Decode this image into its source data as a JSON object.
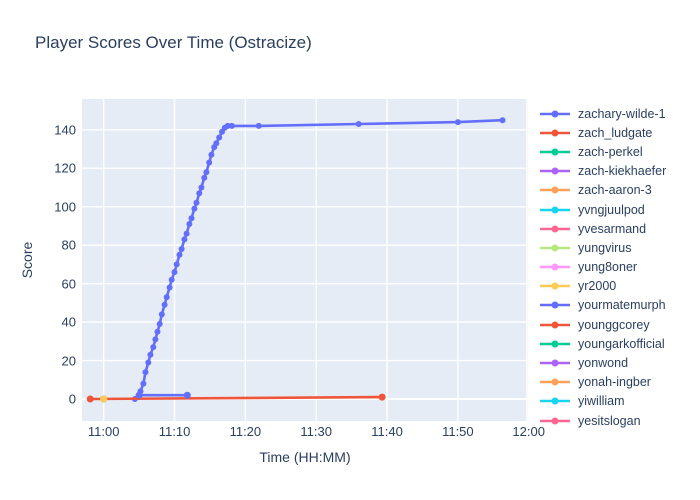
{
  "chart_data": {
    "type": "line",
    "title": "Player Scores Over Time (Ostracize)",
    "xlabel": "Time (HH:MM)",
    "ylabel": "Score",
    "x_unit": "minutes after 11:00",
    "x_ticks": [
      {
        "minutes": 0,
        "label": "11:00"
      },
      {
        "minutes": 10,
        "label": "11:10"
      },
      {
        "minutes": 20,
        "label": "11:20"
      },
      {
        "minutes": 30,
        "label": "11:30"
      },
      {
        "minutes": 40,
        "label": "11:40"
      },
      {
        "minutes": 50,
        "label": "11:50"
      },
      {
        "minutes": 60,
        "label": "12:00"
      }
    ],
    "y_ticks": [
      0,
      20,
      40,
      60,
      80,
      100,
      120,
      140
    ],
    "x_range_minutes": [
      -3.1,
      59.9
    ],
    "y_range": [
      -11.5,
      156
    ],
    "grid": true,
    "legend_position": "right",
    "plot_bg_color": "#E5ECF6",
    "grid_color": "#ffffff",
    "font_color": "#2a3f5f",
    "series": [
      {
        "name": "zachary-wilde-1",
        "color": "#636EFA",
        "points": [
          [
            4.4,
            0
          ],
          [
            4.9,
            1
          ],
          [
            5.2,
            4
          ],
          [
            5.6,
            8
          ],
          [
            5.9,
            14
          ],
          [
            6.3,
            19
          ],
          [
            6.6,
            23
          ],
          [
            7.0,
            27
          ],
          [
            7.3,
            31
          ],
          [
            7.6,
            35
          ],
          [
            7.9,
            39
          ],
          [
            8.2,
            44
          ],
          [
            8.6,
            49
          ],
          [
            8.9,
            53
          ],
          [
            9.3,
            58
          ],
          [
            9.6,
            62
          ],
          [
            10.0,
            66
          ],
          [
            10.3,
            70
          ],
          [
            10.7,
            75
          ],
          [
            11.0,
            78
          ],
          [
            11.4,
            83
          ],
          [
            11.7,
            86
          ],
          [
            12.1,
            91
          ],
          [
            12.4,
            94
          ],
          [
            12.8,
            99
          ],
          [
            13.1,
            102
          ],
          [
            13.5,
            107
          ],
          [
            13.8,
            110
          ],
          [
            14.2,
            115
          ],
          [
            14.5,
            118
          ],
          [
            14.9,
            123
          ],
          [
            15.2,
            127
          ],
          [
            15.6,
            131
          ],
          [
            15.9,
            133
          ],
          [
            16.3,
            136
          ],
          [
            16.7,
            139
          ],
          [
            17.1,
            141
          ],
          [
            17.5,
            142
          ],
          [
            18.1,
            142
          ],
          [
            21.9,
            142
          ],
          [
            36,
            143
          ],
          [
            50,
            144
          ],
          [
            56.3,
            145
          ]
        ]
      },
      {
        "name": "zach_ludgate",
        "color": "#EF553B",
        "points": [
          [
            -1.9,
            0
          ],
          [
            39.3,
            1
          ]
        ]
      },
      {
        "name": "zach-perkel",
        "color": "#00CC96",
        "points": [
          [
            0,
            0
          ]
        ]
      },
      {
        "name": "zach-kiekhaefer",
        "color": "#AB63FA",
        "points": [
          [
            0,
            0
          ]
        ]
      },
      {
        "name": "zach-aaron-3",
        "color": "#FFA15A",
        "points": [
          [
            0,
            0
          ]
        ]
      },
      {
        "name": "yvngjuulpod",
        "color": "#19D3F3",
        "points": [
          [
            0,
            0
          ]
        ]
      },
      {
        "name": "yvesarmand",
        "color": "#FF6692",
        "points": [
          [
            0,
            0
          ]
        ]
      },
      {
        "name": "yungvirus",
        "color": "#B6E880",
        "points": [
          [
            0,
            0
          ]
        ]
      },
      {
        "name": "yung8oner",
        "color": "#FF97FF",
        "points": [
          [
            0,
            0
          ]
        ]
      },
      {
        "name": "yr2000",
        "color": "#FECB52",
        "points": [
          [
            0,
            0
          ]
        ]
      },
      {
        "name": "yourmatemurph",
        "color": "#636EFA",
        "points": [
          [
            5,
            2
          ],
          [
            11.8,
            2
          ]
        ]
      },
      {
        "name": "younggcorey",
        "color": "#EF553B",
        "points": []
      },
      {
        "name": "youngarkofficial",
        "color": "#00CC96",
        "points": []
      },
      {
        "name": "yonwond",
        "color": "#AB63FA",
        "points": []
      },
      {
        "name": "yonah-ingber",
        "color": "#FFA15A",
        "points": []
      },
      {
        "name": "yiwilliam",
        "color": "#19D3F3",
        "points": []
      },
      {
        "name": "yesitslogan",
        "color": "#FF6692",
        "points": []
      }
    ]
  }
}
